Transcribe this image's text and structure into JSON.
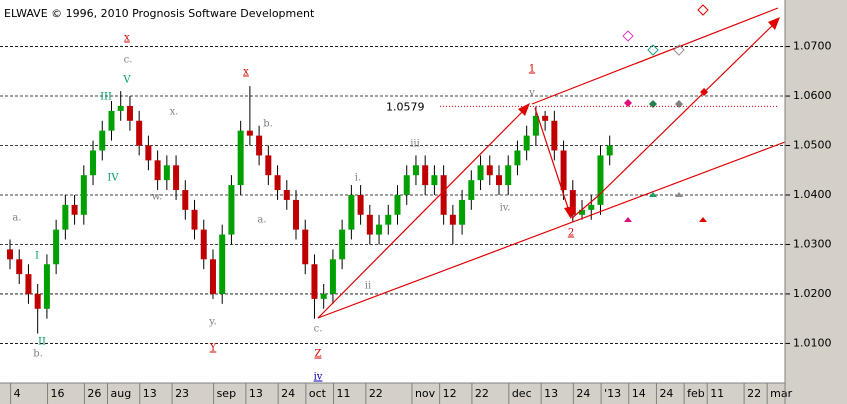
{
  "chart_data": {
    "type": "candlestick",
    "title": "ELWAVE © 1996, 2010 Prognosis Software Development",
    "up_color": "#00a000",
    "down_color": "#c00000",
    "grid": true,
    "ylim": [
      1.002,
      1.0784
    ],
    "yticks": [
      {
        "value": 1.01,
        "label": "1.0100"
      },
      {
        "value": 1.02,
        "label": "1.0200"
      },
      {
        "value": 1.03,
        "label": "1.0300"
      },
      {
        "value": 1.04,
        "label": "1.0400"
      },
      {
        "value": 1.05,
        "label": "1.0500"
      },
      {
        "value": 1.06,
        "label": "1.0600"
      },
      {
        "value": 1.07,
        "label": "1.0700"
      }
    ],
    "xlim": [
      0,
      168
    ],
    "xticks": [
      {
        "value": 1,
        "label": "4"
      },
      {
        "value": 9,
        "label": "16"
      },
      {
        "value": 17,
        "label": "26"
      },
      {
        "value": 22,
        "label": "aug"
      },
      {
        "value": 29,
        "label": "13"
      },
      {
        "value": 36,
        "label": "23"
      },
      {
        "value": 45,
        "label": "sep"
      },
      {
        "value": 52,
        "label": "13"
      },
      {
        "value": 59,
        "label": "24"
      },
      {
        "value": 65,
        "label": "oct"
      },
      {
        "value": 71,
        "label": "11"
      },
      {
        "value": 78,
        "label": "22"
      },
      {
        "value": 88,
        "label": "nov"
      },
      {
        "value": 94,
        "label": "12"
      },
      {
        "value": 101,
        "label": "22"
      },
      {
        "value": 109,
        "label": "dec"
      },
      {
        "value": 116,
        "label": "13"
      },
      {
        "value": 123,
        "label": "24"
      },
      {
        "value": 129,
        "label": "'13"
      },
      {
        "value": 135,
        "label": "14"
      },
      {
        "value": 141,
        "label": "24"
      },
      {
        "value": 147,
        "label": "feb"
      },
      {
        "value": 152,
        "label": "11"
      },
      {
        "value": 160,
        "label": "22"
      },
      {
        "value": 165,
        "label": "mar"
      }
    ],
    "x": [
      0,
      2,
      4,
      6,
      8,
      10,
      12,
      14,
      16,
      18,
      20,
      22,
      24,
      26,
      28,
      30,
      32,
      34,
      36,
      38,
      40,
      42,
      44,
      46,
      48,
      50,
      52,
      54,
      56,
      58,
      60,
      62,
      64,
      66,
      68,
      70,
      72,
      74,
      76,
      78,
      80,
      82,
      84,
      86,
      88,
      90,
      92,
      94,
      96,
      98,
      100,
      102,
      104,
      106,
      108,
      110,
      112,
      114,
      116,
      118,
      120,
      122,
      124,
      126,
      128,
      130
    ],
    "open": [
      1.029,
      1.027,
      1.024,
      1.02,
      1.017,
      1.026,
      1.033,
      1.038,
      1.036,
      1.044,
      1.049,
      1.053,
      1.057,
      1.058,
      1.055,
      1.05,
      1.047,
      1.043,
      1.046,
      1.041,
      1.037,
      1.033,
      1.027,
      1.02,
      1.032,
      1.042,
      1.053,
      1.052,
      1.048,
      1.044,
      1.041,
      1.039,
      1.033,
      1.026,
      1.019,
      1.02,
      1.027,
      1.033,
      1.04,
      1.036,
      1.032,
      1.034,
      1.036,
      1.04,
      1.044,
      1.046,
      1.042,
      1.044,
      1.036,
      1.034,
      1.039,
      1.043,
      1.046,
      1.044,
      1.042,
      1.046,
      1.049,
      1.052,
      1.056,
      1.055,
      1.049,
      1.041,
      1.036,
      1.037,
      1.038,
      1.048
    ],
    "high": [
      1.031,
      1.029,
      1.026,
      1.022,
      1.028,
      1.035,
      1.04,
      1.04,
      1.046,
      1.051,
      1.055,
      1.059,
      1.061,
      1.06,
      1.057,
      1.052,
      1.049,
      1.048,
      1.048,
      1.043,
      1.039,
      1.035,
      1.029,
      1.034,
      1.044,
      1.055,
      1.062,
      1.054,
      1.05,
      1.046,
      1.043,
      1.041,
      1.035,
      1.028,
      1.022,
      1.029,
      1.035,
      1.042,
      1.042,
      1.038,
      1.036,
      1.038,
      1.042,
      1.046,
      1.048,
      1.048,
      1.046,
      1.046,
      1.038,
      1.041,
      1.045,
      1.048,
      1.048,
      1.046,
      1.048,
      1.051,
      1.054,
      1.0579,
      1.057,
      1.057,
      1.051,
      1.043,
      1.039,
      1.04,
      1.05,
      1.052
    ],
    "low": [
      1.025,
      1.022,
      1.018,
      1.012,
      1.015,
      1.024,
      1.031,
      1.034,
      1.034,
      1.042,
      1.047,
      1.051,
      1.055,
      1.053,
      1.048,
      1.045,
      1.041,
      1.041,
      1.039,
      1.035,
      1.031,
      1.025,
      1.019,
      1.018,
      1.03,
      1.04,
      1.05,
      1.046,
      1.042,
      1.039,
      1.037,
      1.031,
      1.024,
      1.015,
      1.017,
      1.018,
      1.025,
      1.031,
      1.034,
      1.03,
      1.03,
      1.032,
      1.034,
      1.038,
      1.042,
      1.04,
      1.04,
      1.034,
      1.03,
      1.032,
      1.037,
      1.041,
      1.042,
      1.04,
      1.04,
      1.044,
      1.047,
      1.05,
      1.053,
      1.047,
      1.039,
      1.0345,
      1.035,
      1.035,
      1.036,
      1.046
    ],
    "close": [
      1.027,
      1.024,
      1.02,
      1.017,
      1.026,
      1.033,
      1.038,
      1.036,
      1.044,
      1.049,
      1.053,
      1.057,
      1.058,
      1.055,
      1.05,
      1.047,
      1.043,
      1.046,
      1.041,
      1.037,
      1.033,
      1.027,
      1.02,
      1.032,
      1.042,
      1.053,
      1.052,
      1.048,
      1.044,
      1.041,
      1.039,
      1.033,
      1.026,
      1.019,
      1.02,
      1.027,
      1.033,
      1.04,
      1.036,
      1.032,
      1.034,
      1.036,
      1.04,
      1.044,
      1.046,
      1.042,
      1.044,
      1.036,
      1.034,
      1.039,
      1.043,
      1.046,
      1.044,
      1.042,
      1.046,
      1.049,
      1.052,
      1.056,
      1.055,
      1.049,
      1.041,
      1.036,
      1.037,
      1.038,
      1.048,
      1.05
    ],
    "level": 1.0579,
    "annotations": [
      {
        "text": "a.",
        "color": "#808080"
      },
      {
        "text": "I",
        "color": "#00a060"
      },
      {
        "text": "II",
        "color": "#00a060"
      },
      {
        "text": "b.",
        "color": "#808080"
      },
      {
        "text": "III",
        "color": "#00a060"
      },
      {
        "text": "IV",
        "color": "#00a060"
      },
      {
        "text": "V",
        "color": "#00a060"
      },
      {
        "text": "c.",
        "color": "#808080"
      },
      {
        "text": "x",
        "color": "#d00000"
      },
      {
        "text": "x.",
        "color": "#808080"
      },
      {
        "text": "w.",
        "color": "#808080"
      },
      {
        "text": "a.",
        "color": "#808080"
      },
      {
        "text": "y.",
        "color": "#808080"
      },
      {
        "text": "Y",
        "color": "#d00000"
      },
      {
        "text": "x",
        "color": "#d00000"
      },
      {
        "text": "b.",
        "color": "#808080"
      },
      {
        "text": "i.",
        "color": "#808080"
      },
      {
        "text": "ii",
        "color": "#808080"
      },
      {
        "text": "c.",
        "color": "#808080"
      },
      {
        "text": "Z",
        "color": "#d00000"
      },
      {
        "text": "iv",
        "color": "#0000c0"
      },
      {
        "text": "iii",
        "color": "#808080"
      },
      {
        "text": "iv.",
        "color": "#808080"
      },
      {
        "text": "v",
        "color": "#808080"
      },
      {
        "text": "1",
        "color": "#d00000"
      },
      {
        "text": "2",
        "color": "#d00000"
      }
    ]
  }
}
